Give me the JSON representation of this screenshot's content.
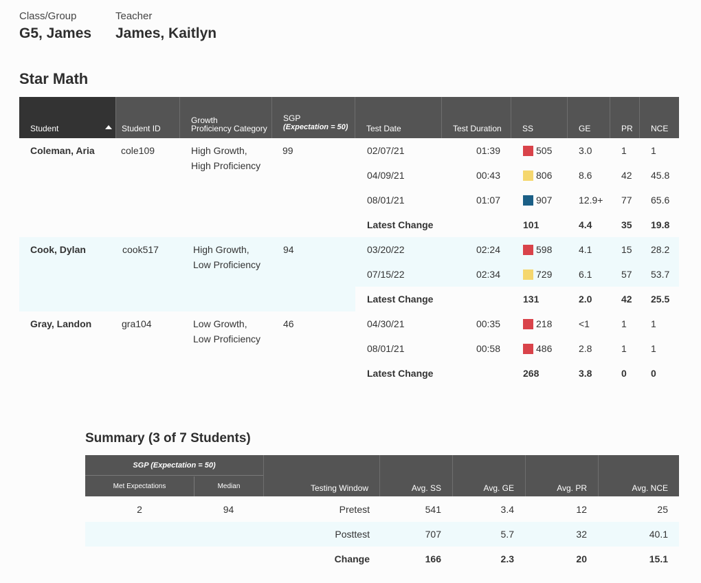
{
  "header": {
    "class_label": "Class/Group",
    "class_value": "G5, James",
    "teacher_label": "Teacher",
    "teacher_value": "James, Kaitlyn"
  },
  "section_title": "Star Math",
  "table": {
    "columns": {
      "student": "Student",
      "student_id": "Student ID",
      "growth_line1": "Growth",
      "growth_line2": "Proficiency Category",
      "sgp": "SGP",
      "sgp_sub": "(Expectation = 50)",
      "test_date": "Test Date",
      "test_duration": "Test Duration",
      "ss": "SS",
      "ge": "GE",
      "pr": "PR",
      "nce": "NCE"
    },
    "latest_change_label": "Latest Change",
    "students": [
      {
        "name": "Coleman, Aria",
        "id": "cole109",
        "growth": "High Growth,",
        "proficiency": "High Proficiency",
        "sgp": "99",
        "tests": [
          {
            "date": "02/07/21",
            "duration": "01:39",
            "ss": "505",
            "ge": "3.0",
            "pr": "1",
            "nce": "1",
            "color": "#d9434a"
          },
          {
            "date": "04/09/21",
            "duration": "00:43",
            "ss": "806",
            "ge": "8.6",
            "pr": "42",
            "nce": "45.8",
            "color": "#f5d76e"
          },
          {
            "date": "08/01/21",
            "duration": "01:07",
            "ss": "907",
            "ge": "12.9+",
            "pr": "77",
            "nce": "65.6",
            "color": "#1b5f86"
          }
        ],
        "change": {
          "ss": "101",
          "ge": "4.4",
          "pr": "35",
          "nce": "19.8"
        }
      },
      {
        "name": "Cook, Dylan",
        "id": "cook517",
        "growth": "High Growth,",
        "proficiency": "Low Proficiency",
        "sgp": "94",
        "tests": [
          {
            "date": "03/20/22",
            "duration": "02:24",
            "ss": "598",
            "ge": "4.1",
            "pr": "15",
            "nce": "28.2",
            "color": "#d9434a"
          },
          {
            "date": "07/15/22",
            "duration": "02:34",
            "ss": "729",
            "ge": "6.1",
            "pr": "57",
            "nce": "53.7",
            "color": "#f5d76e"
          }
        ],
        "change": {
          "ss": "131",
          "ge": "2.0",
          "pr": "42",
          "nce": "25.5"
        }
      },
      {
        "name": "Gray, Landon",
        "id": "gra104",
        "growth": "Low Growth,",
        "proficiency": "Low Proficiency",
        "sgp": "46",
        "tests": [
          {
            "date": "04/30/21",
            "duration": "00:35",
            "ss": "218",
            "ge": "<1",
            "pr": "1",
            "nce": "1",
            "color": "#d9434a"
          },
          {
            "date": "08/01/21",
            "duration": "00:58",
            "ss": "486",
            "ge": "2.8",
            "pr": "1",
            "nce": "1",
            "color": "#d9434a"
          }
        ],
        "change": {
          "ss": "268",
          "ge": "3.8",
          "pr": "0",
          "nce": "0"
        }
      }
    ]
  },
  "summary": {
    "title": "Summary (3 of 7 Students)",
    "columns": {
      "sgp_group": "SGP (Expectation = 50)",
      "met": "Met Expectations",
      "median": "Median",
      "window": "Testing Window",
      "avg_ss": "Avg. SS",
      "avg_ge": "Avg. GE",
      "avg_pr": "Avg. PR",
      "avg_nce": "Avg. NCE"
    },
    "met_value": "2",
    "median_value": "94",
    "rows": [
      {
        "window": "Pretest",
        "ss": "541",
        "ge": "3.4",
        "pr": "12",
        "nce": "25"
      },
      {
        "window": "Posttest",
        "ss": "707",
        "ge": "5.7",
        "pr": "32",
        "nce": "40.1"
      },
      {
        "window": "Change",
        "ss": "166",
        "ge": "2.3",
        "pr": "20",
        "nce": "15.1"
      }
    ]
  }
}
